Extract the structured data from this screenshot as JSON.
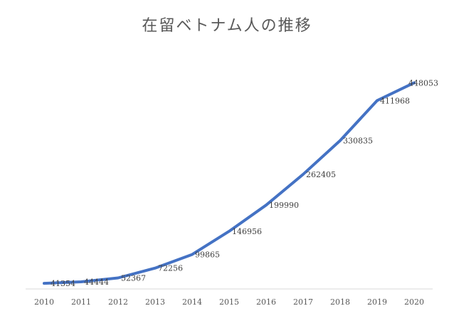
{
  "chart_data": {
    "type": "line",
    "title": "在留ベトナム人の推移",
    "xlabel": "",
    "ylabel": "",
    "categories": [
      "2010",
      "2011",
      "2012",
      "2013",
      "2014",
      "2015",
      "2016",
      "2017",
      "2018",
      "2019",
      "2020"
    ],
    "series": [
      {
        "values": [
          41354,
          44444,
          52367,
          72256,
          99865,
          146956,
          199990,
          262405,
          330835,
          411968,
          448053
        ]
      }
    ],
    "data_labels": [
      "41354",
      "44444",
      "52367",
      "72256",
      "99865",
      "146956",
      "199990",
      "262405",
      "330835",
      "411968",
      "448053"
    ],
    "ylim": [
      30000,
      460000
    ],
    "grid": false,
    "legend": "none",
    "line_color": "#4472c4",
    "axis_color": "#d9d9d9"
  }
}
